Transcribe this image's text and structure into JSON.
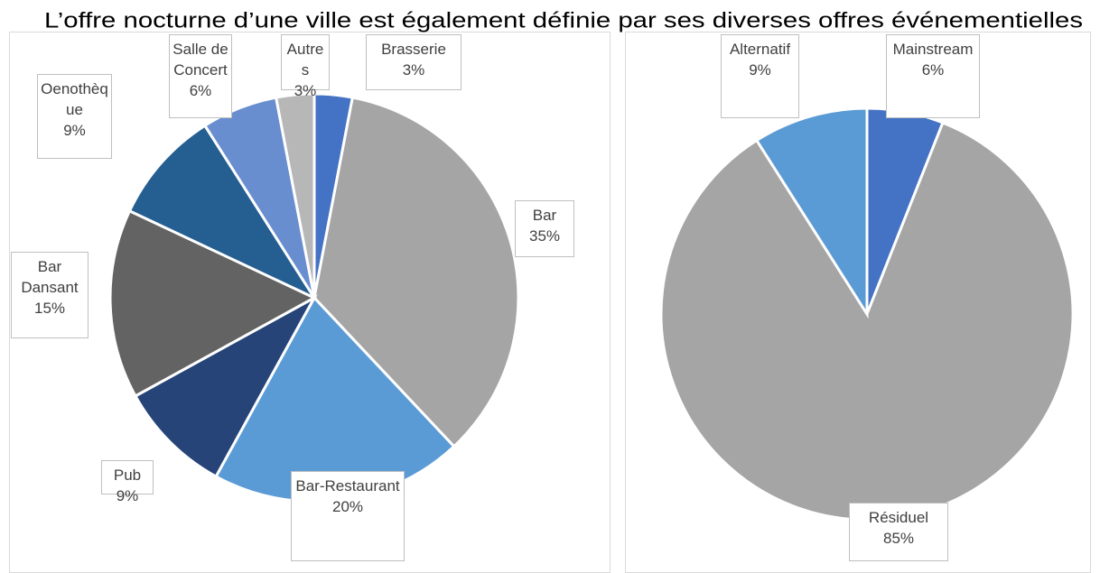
{
  "title": "L’offre nocturne d’une ville est également définie par ses diverses offres événementielles",
  "chart_data": [
    {
      "type": "pie",
      "categories": [
        "Brasserie",
        "Bar",
        "Bar-Restaurant",
        "Pub",
        "Bar Dansant",
        "Oenothèque",
        "Salle de Concert",
        "Autres"
      ],
      "values": [
        3,
        35,
        20,
        9,
        15,
        9,
        6,
        3
      ],
      "value_labels": [
        "3%",
        "35%",
        "20%",
        "9%",
        "15%",
        "9%",
        "6%",
        "3%"
      ],
      "colors": [
        "#4472c4",
        "#a5a5a5",
        "#5b9bd5",
        "#264478",
        "#636363",
        "#255e91",
        "#698ed0",
        "#b7b7b7"
      ]
    },
    {
      "type": "pie",
      "categories": [
        "Mainstream",
        "Résiduel",
        "Alternatif"
      ],
      "values": [
        6,
        85,
        9
      ],
      "value_labels": [
        "6%",
        "85%",
        "9%"
      ],
      "colors": [
        "#4472c4",
        "#a5a5a5",
        "#5b9bd5"
      ]
    }
  ]
}
